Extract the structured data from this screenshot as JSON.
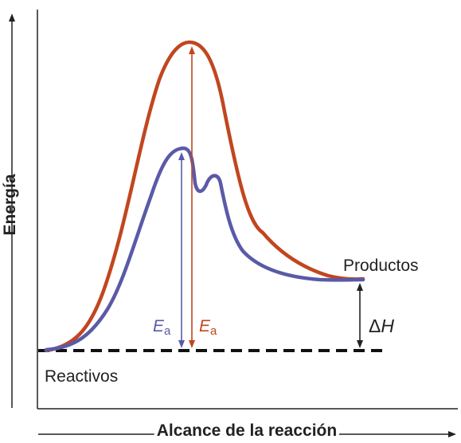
{
  "diagram": {
    "y_axis_label": "Energía",
    "x_axis_label": "Alcance de la reacción",
    "reactants_label": "Reactivos",
    "products_label": "Productos",
    "delta_h_label": {
      "symbol": "Δ",
      "variable": "H"
    },
    "ea_uncatalyzed_label": {
      "symbol": "E",
      "subscript": "a"
    },
    "ea_catalyzed_label": {
      "symbol": "E",
      "subscript": "a"
    },
    "colors": {
      "uncatalyzed_curve": "#c1461f",
      "catalyzed_curve": "#5a5aa8",
      "axes": "#222222",
      "baseline": "#111111"
    }
  }
}
